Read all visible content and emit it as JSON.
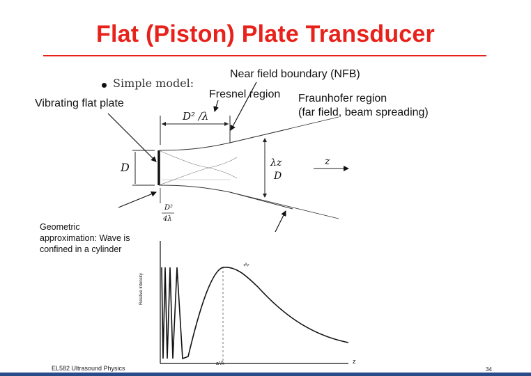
{
  "slide": {
    "title": "Flat (Piston) Plate Transducer",
    "bullet": "Simple model:",
    "labels": {
      "nfb": "Near field boundary (NFB)",
      "fresnel": "Fresnel region",
      "fraunhofer_1": "Fraunhofer region",
      "fraunhofer_2": "(far field, beam spreading)",
      "plate": "Vibrating flat plate",
      "geometric": "Geometric approximation: Wave is confined in a cylinder"
    },
    "math": {
      "near_len": "D² /λ",
      "aperture": "D",
      "beam_num": "λz",
      "beam_den": "D",
      "axis_z": "z",
      "focal_num": "D²",
      "focal_den": "4λ"
    },
    "plot": {
      "ylabel": "Relative Intensity",
      "xlabel": "z",
      "peak_tick": "a²/λ",
      "curve_label": "z²"
    },
    "footer": {
      "course": "EL582 Ultrasound Physics",
      "page": "34"
    },
    "colors": {
      "title": "#e8221b",
      "rule": "#e8221b",
      "bar": "#2a4b8a"
    }
  }
}
